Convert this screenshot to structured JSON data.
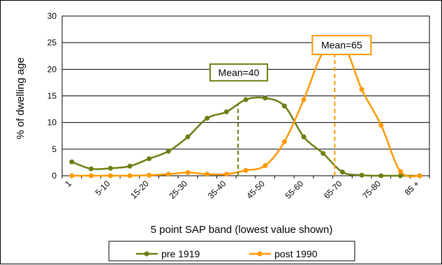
{
  "chart_data": {
    "type": "line",
    "title": "",
    "xlabel": "5 point SAP band (lowest value shown)",
    "ylabel": "% of dwelling age",
    "ylim": [
      0,
      30
    ],
    "yticks": [
      0,
      5,
      10,
      15,
      20,
      25,
      30
    ],
    "grid": "horizontal",
    "legend_position": "bottom",
    "categories": [
      "1",
      "",
      "5-10",
      "",
      "15-20",
      "",
      "25-30",
      "",
      "35-40",
      "",
      "45-50",
      "",
      "55-60",
      "",
      "65-70",
      "",
      "75-80",
      "",
      "85 +"
    ],
    "x": [
      1,
      5,
      10,
      15,
      20,
      25,
      30,
      35,
      40,
      45,
      50,
      55,
      60,
      65,
      70,
      75,
      80,
      85,
      90
    ],
    "series": [
      {
        "name": "pre 1919",
        "color": "#6b7f12",
        "values": [
          2.6,
          1.3,
          1.4,
          1.8,
          3.2,
          4.6,
          7.3,
          10.8,
          12.0,
          14.3,
          14.6,
          13.1,
          7.3,
          4.2,
          0.7,
          0.1,
          0.0,
          0.0,
          0.0
        ]
      },
      {
        "name": "post 1990",
        "color": "#ff9900",
        "values": [
          0.0,
          0.0,
          0.0,
          0.0,
          0.1,
          0.3,
          0.6,
          0.3,
          0.3,
          1.0,
          1.9,
          6.4,
          14.3,
          23.2,
          24.9,
          16.2,
          9.5,
          0.8,
          0.0
        ]
      }
    ],
    "annotations": [
      {
        "text": "Mean=40",
        "series": "pre 1919",
        "x_index": 8.6,
        "color": "#6b7f12"
      },
      {
        "text": "Mean=65",
        "series": "post 1990",
        "x_index": 13.6,
        "color": "#ff9900"
      }
    ]
  }
}
